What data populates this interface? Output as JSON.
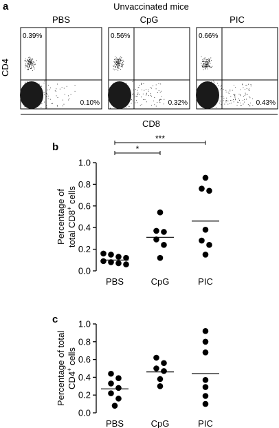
{
  "panel_a": {
    "letter": "a",
    "title": "Unvaccinated mice",
    "y_axis_label": "CD4",
    "x_axis_label": "CD8",
    "plots": [
      {
        "name": "PBS",
        "upper_left_pct": "0.39%",
        "lower_right_pct": "0.10%"
      },
      {
        "name": "CpG",
        "upper_left_pct": "0.56%",
        "lower_right_pct": "0.32%"
      },
      {
        "name": "PIC",
        "upper_left_pct": "0.66%",
        "lower_right_pct": "0.43%"
      }
    ]
  },
  "chart_data": [
    {
      "panel": "b",
      "type": "scatter",
      "categories": [
        "PBS",
        "CpG",
        "PIC"
      ],
      "ylabel_line1": "Percentage of",
      "ylabel_line2": "total CD8",
      "ylabel_sup": "+",
      "ylabel_end": " cells",
      "ylim": [
        0,
        1.0
      ],
      "yticks": [
        "0.0",
        "0.2",
        "0.4",
        "0.6",
        "0.8",
        "1.0"
      ],
      "series": [
        {
          "category": "PBS",
          "values": [
            0.16,
            0.15,
            0.13,
            0.12,
            0.09,
            0.08,
            0.07,
            0.06
          ],
          "mean": 0.1
        },
        {
          "category": "CpG",
          "values": [
            0.54,
            0.37,
            0.36,
            0.29,
            0.24,
            0.12
          ],
          "mean": 0.31
        },
        {
          "category": "PIC",
          "values": [
            0.86,
            0.76,
            0.74,
            0.38,
            0.28,
            0.24,
            0.15
          ],
          "mean": 0.46
        }
      ],
      "significance": [
        {
          "from": "PBS",
          "to": "CpG",
          "label": "*"
        },
        {
          "from": "PBS",
          "to": "PIC",
          "label": "***"
        }
      ]
    },
    {
      "panel": "c",
      "type": "scatter",
      "categories": [
        "PBS",
        "CpG",
        "PIC"
      ],
      "ylabel_line1": "Percentage of total",
      "ylabel_line2": "CD4",
      "ylabel_sup": "+",
      "ylabel_end": " cells",
      "ylim": [
        0,
        1.0
      ],
      "yticks": [
        "0.0",
        "0.2",
        "0.4",
        "0.6",
        "0.8",
        "1.0"
      ],
      "series": [
        {
          "category": "PBS",
          "values": [
            0.44,
            0.39,
            0.33,
            0.28,
            0.22,
            0.16,
            0.08
          ],
          "mean": 0.27
        },
        {
          "category": "CpG",
          "values": [
            0.62,
            0.56,
            0.5,
            0.47,
            0.38,
            0.3
          ],
          "mean": 0.46
        },
        {
          "category": "PIC",
          "values": [
            0.92,
            0.8,
            0.68,
            0.37,
            0.29,
            0.19,
            0.1
          ],
          "mean": 0.44
        }
      ],
      "significance": []
    }
  ]
}
